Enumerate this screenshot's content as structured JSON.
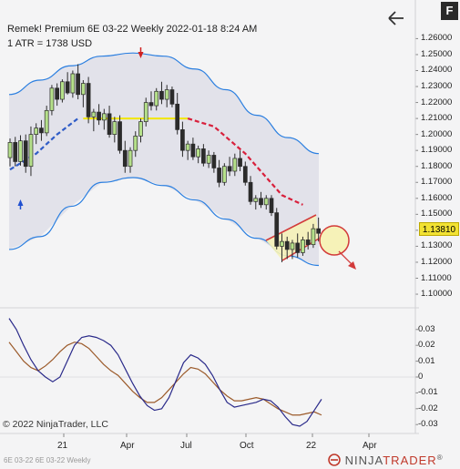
{
  "header": {
    "title": "Remek!  Premium  6E 03-22  Weekly  2022-01-18 8:24 AM",
    "atr": "1 ATR = 1738 USD"
  },
  "toolbar": {
    "back_icon": "arrow-left-icon",
    "f_label": "F"
  },
  "price_marker": "1.13810",
  "copyright": "© 2022 NinjaTrader, LLC",
  "footer": "6E 03-22  6E 03-22 Weekly",
  "brand": {
    "prefix": "NINJA",
    "suffix": "TRADER",
    "reg": "®"
  },
  "colors": {
    "up_candle": "#b5e08a",
    "down_candle": "#2b2b2b",
    "band": "#2b7fe0",
    "trail_up": "#2f5cc7",
    "trail_down": "#d8203c",
    "trail_flat": "#f2e600",
    "osc_fast": "#2a2a8a",
    "osc_slow": "#9b5a2a"
  },
  "chart_data": [
    {
      "type": "candlestick",
      "y_axis": {
        "ticks": [
          "1.26000",
          "1.25000",
          "1.24000",
          "1.23000",
          "1.22000",
          "1.21000",
          "1.20000",
          "1.19000",
          "1.18000",
          "1.17000",
          "1.16000",
          "1.15000",
          "1.14000",
          "1.13000",
          "1.12000",
          "1.11000",
          "1.10000"
        ],
        "range": [
          1.092,
          1.267
        ]
      },
      "x_axis": {
        "ticks": [
          "21",
          "Apr",
          "Jul",
          "Oct",
          "22",
          "Apr"
        ]
      },
      "candles": [
        {
          "o": 1.1855,
          "h": 1.1975,
          "l": 1.18,
          "c": 1.195
        },
        {
          "o": 1.195,
          "h": 1.1985,
          "l": 1.18,
          "c": 1.183
        },
        {
          "o": 1.183,
          "h": 1.1995,
          "l": 1.1805,
          "c": 1.196
        },
        {
          "o": 1.196,
          "h": 1.2,
          "l": 1.176,
          "c": 1.18
        },
        {
          "o": 1.18,
          "h": 1.205,
          "l": 1.174,
          "c": 1.2
        },
        {
          "o": 1.2,
          "h": 1.207,
          "l": 1.194,
          "c": 1.204
        },
        {
          "o": 1.204,
          "h": 1.209,
          "l": 1.196,
          "c": 1.201
        },
        {
          "o": 1.201,
          "h": 1.218,
          "l": 1.199,
          "c": 1.215
        },
        {
          "o": 1.215,
          "h": 1.231,
          "l": 1.212,
          "c": 1.229
        },
        {
          "o": 1.229,
          "h": 1.232,
          "l": 1.218,
          "c": 1.222
        },
        {
          "o": 1.222,
          "h": 1.2345,
          "l": 1.22,
          "c": 1.233
        },
        {
          "o": 1.233,
          "h": 1.239,
          "l": 1.225,
          "c": 1.226
        },
        {
          "o": 1.226,
          "h": 1.24,
          "l": 1.223,
          "c": 1.238
        },
        {
          "o": 1.238,
          "h": 1.244,
          "l": 1.222,
          "c": 1.225
        },
        {
          "o": 1.225,
          "h": 1.234,
          "l": 1.217,
          "c": 1.232
        },
        {
          "o": 1.232,
          "h": 1.236,
          "l": 1.207,
          "c": 1.211
        },
        {
          "o": 1.211,
          "h": 1.216,
          "l": 1.202,
          "c": 1.214
        },
        {
          "o": 1.214,
          "h": 1.219,
          "l": 1.206,
          "c": 1.209
        },
        {
          "o": 1.209,
          "h": 1.216,
          "l": 1.203,
          "c": 1.213
        },
        {
          "o": 1.213,
          "h": 1.218,
          "l": 1.198,
          "c": 1.2
        },
        {
          "o": 1.2,
          "h": 1.211,
          "l": 1.195,
          "c": 1.208
        },
        {
          "o": 1.208,
          "h": 1.212,
          "l": 1.188,
          "c": 1.19
        },
        {
          "o": 1.19,
          "h": 1.196,
          "l": 1.176,
          "c": 1.18
        },
        {
          "o": 1.18,
          "h": 1.192,
          "l": 1.176,
          "c": 1.19
        },
        {
          "o": 1.19,
          "h": 1.202,
          "l": 1.186,
          "c": 1.199
        },
        {
          "o": 1.199,
          "h": 1.21,
          "l": 1.195,
          "c": 1.208
        },
        {
          "o": 1.208,
          "h": 1.223,
          "l": 1.205,
          "c": 1.22
        },
        {
          "o": 1.22,
          "h": 1.227,
          "l": 1.215,
          "c": 1.218
        },
        {
          "o": 1.218,
          "h": 1.229,
          "l": 1.215,
          "c": 1.227
        },
        {
          "o": 1.227,
          "h": 1.233,
          "l": 1.219,
          "c": 1.222
        },
        {
          "o": 1.222,
          "h": 1.231,
          "l": 1.217,
          "c": 1.228
        },
        {
          "o": 1.228,
          "h": 1.23,
          "l": 1.217,
          "c": 1.219
        },
        {
          "o": 1.219,
          "h": 1.226,
          "l": 1.2,
          "c": 1.203
        },
        {
          "o": 1.203,
          "h": 1.208,
          "l": 1.186,
          "c": 1.19
        },
        {
          "o": 1.19,
          "h": 1.196,
          "l": 1.184,
          "c": 1.194
        },
        {
          "o": 1.194,
          "h": 1.198,
          "l": 1.184,
          "c": 1.186
        },
        {
          "o": 1.186,
          "h": 1.193,
          "l": 1.182,
          "c": 1.191
        },
        {
          "o": 1.191,
          "h": 1.194,
          "l": 1.18,
          "c": 1.182
        },
        {
          "o": 1.182,
          "h": 1.19,
          "l": 1.179,
          "c": 1.187
        },
        {
          "o": 1.187,
          "h": 1.189,
          "l": 1.176,
          "c": 1.179
        },
        {
          "o": 1.179,
          "h": 1.184,
          "l": 1.167,
          "c": 1.17
        },
        {
          "o": 1.17,
          "h": 1.182,
          "l": 1.168,
          "c": 1.18
        },
        {
          "o": 1.18,
          "h": 1.186,
          "l": 1.174,
          "c": 1.177
        },
        {
          "o": 1.177,
          "h": 1.188,
          "l": 1.174,
          "c": 1.185
        },
        {
          "o": 1.185,
          "h": 1.19,
          "l": 1.177,
          "c": 1.18
        },
        {
          "o": 1.18,
          "h": 1.183,
          "l": 1.168,
          "c": 1.17
        },
        {
          "o": 1.17,
          "h": 1.174,
          "l": 1.156,
          "c": 1.158
        },
        {
          "o": 1.158,
          "h": 1.162,
          "l": 1.153,
          "c": 1.16
        },
        {
          "o": 1.16,
          "h": 1.164,
          "l": 1.154,
          "c": 1.156
        },
        {
          "o": 1.156,
          "h": 1.162,
          "l": 1.153,
          "c": 1.16
        },
        {
          "o": 1.16,
          "h": 1.162,
          "l": 1.149,
          "c": 1.151
        },
        {
          "o": 1.151,
          "h": 1.154,
          "l": 1.128,
          "c": 1.13
        },
        {
          "o": 1.13,
          "h": 1.138,
          "l": 1.12,
          "c": 1.133
        },
        {
          "o": 1.133,
          "h": 1.136,
          "l": 1.122,
          "c": 1.128
        },
        {
          "o": 1.128,
          "h": 1.134,
          "l": 1.122,
          "c": 1.132
        },
        {
          "o": 1.132,
          "h": 1.138,
          "l": 1.123,
          "c": 1.126
        },
        {
          "o": 1.126,
          "h": 1.136,
          "l": 1.124,
          "c": 1.134
        },
        {
          "o": 1.134,
          "h": 1.139,
          "l": 1.128,
          "c": 1.131
        },
        {
          "o": 1.131,
          "h": 1.144,
          "l": 1.129,
          "c": 1.141
        },
        {
          "o": 1.141,
          "h": 1.148,
          "l": 1.133,
          "c": 1.1381
        }
      ],
      "band_upper": [
        1.225,
        1.234,
        1.243,
        1.249,
        1.251,
        1.249,
        1.241,
        1.228,
        1.212,
        1.198,
        1.188
      ],
      "band_lower": [
        1.128,
        1.136,
        1.155,
        1.17,
        1.173,
        1.168,
        1.159,
        1.147,
        1.135,
        1.124,
        1.118
      ],
      "trail_up": [
        [
          0,
          1.178
        ],
        [
          5,
          1.188
        ],
        [
          9,
          1.2
        ],
        [
          13,
          1.21
        ]
      ],
      "trail_flat": [
        [
          14,
          1.21
        ],
        [
          34,
          1.21
        ]
      ],
      "trail_down": [
        [
          34,
          1.21
        ],
        [
          39,
          1.205
        ],
        [
          45,
          1.188
        ],
        [
          52,
          1.162
        ],
        [
          56,
          1.156
        ]
      ],
      "marker_up_index": 2,
      "marker_down_index": 25
    },
    {
      "type": "line",
      "y_axis": {
        "ticks": [
          "0.03",
          "0.02",
          "0.01",
          "0",
          "-0.01",
          "-0.02",
          "-0.03"
        ],
        "range": [
          -0.035,
          0.039
        ]
      },
      "series": [
        {
          "values": [
            0.037,
            0.03,
            0.02,
            0.011,
            0.004,
            0.0,
            -0.003,
            0.0,
            0.01,
            0.02,
            0.025,
            0.026,
            0.025,
            0.023,
            0.02,
            0.014,
            0.005,
            -0.004,
            -0.012,
            -0.018,
            -0.021,
            -0.02,
            -0.013,
            -0.002,
            0.009,
            0.014,
            0.012,
            0.008,
            0.001,
            -0.008,
            -0.016,
            -0.019,
            -0.018,
            -0.017,
            -0.016,
            -0.014,
            -0.015,
            -0.019,
            -0.025,
            -0.03,
            -0.031,
            -0.028,
            -0.021,
            -0.014
          ]
        },
        {
          "values": [
            0.022,
            0.016,
            0.01,
            0.006,
            0.004,
            0.007,
            0.011,
            0.016,
            0.02,
            0.022,
            0.021,
            0.018,
            0.013,
            0.008,
            0.004,
            0.001,
            -0.004,
            -0.009,
            -0.013,
            -0.016,
            -0.016,
            -0.013,
            -0.008,
            -0.003,
            0.002,
            0.006,
            0.005,
            0.002,
            -0.003,
            -0.008,
            -0.012,
            -0.015,
            -0.015,
            -0.014,
            -0.013,
            -0.014,
            -0.017,
            -0.02,
            -0.022,
            -0.024,
            -0.024,
            -0.023,
            -0.022,
            -0.024
          ]
        }
      ]
    }
  ]
}
